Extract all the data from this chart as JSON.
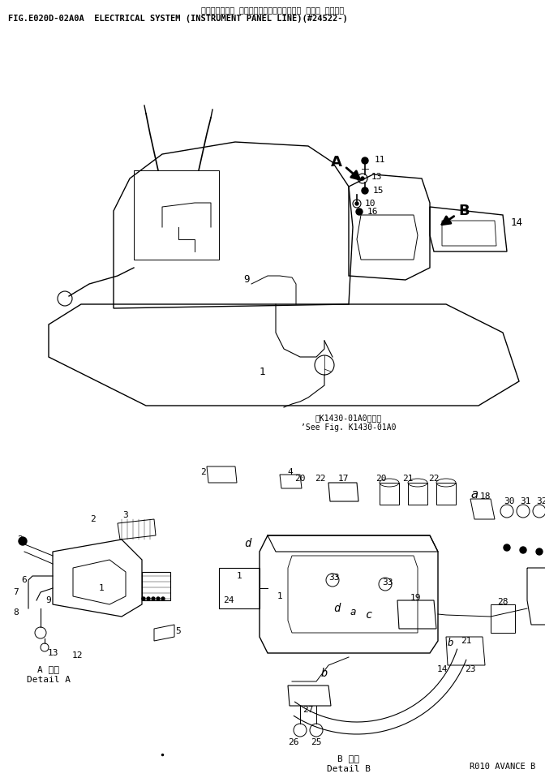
{
  "title_jp": "エレクトリカル システム（インスツルメント パネル ライン）",
  "title_en": "FIG.E020D-02A0A  ELECTRICAL SYSTEM (INSTRUMENT PANEL LINE)(#24522-)",
  "background_color": "#ffffff",
  "fig_width": 6.72,
  "fig_height": 9.59,
  "dpi": 100,
  "footer_text": "R010 AVANCE B",
  "note_text1": "※K1430-01A0図参照",
  "note_text2": "’See Fig. K1430-01A0",
  "detail_a_label": "A 詳細",
  "detail_a_en": "Detail A",
  "detail_b_label": "B 詳細",
  "detail_b_en": "Detail B"
}
